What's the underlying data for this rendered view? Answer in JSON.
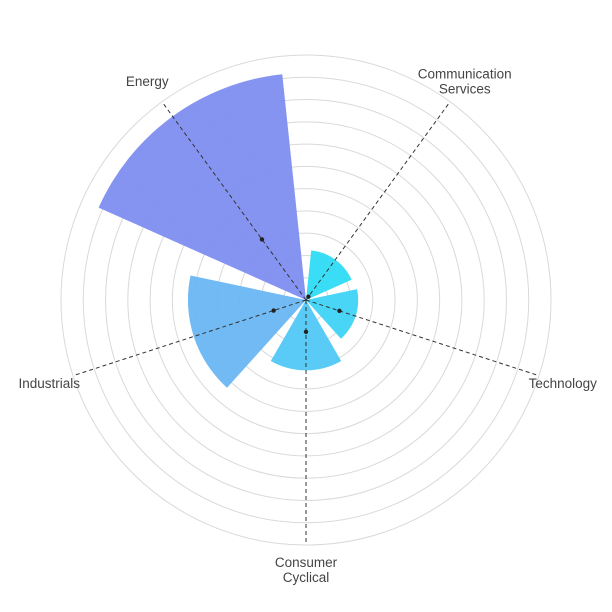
{
  "chart_data": {
    "type": "polar-bar",
    "title": "",
    "rlim": [
      0,
      1
    ],
    "ring_count": 11,
    "grid": true,
    "categories": [
      "Communication Services",
      "Technology",
      "Consumer Cyclical",
      "Industrials",
      "Energy"
    ],
    "label_lines": [
      [
        "Communication",
        "Services"
      ],
      [
        "Technology"
      ],
      [
        "Consumer",
        "Cyclical"
      ],
      [
        "Industrials"
      ],
      [
        "Energy"
      ]
    ],
    "values": [
      0.22,
      0.23,
      0.31,
      0.52,
      1.0
    ],
    "mean_markers": [
      0.018,
      0.155,
      0.14,
      0.15,
      0.33
    ],
    "colors": [
      "#2edcf5",
      "#3fd3f5",
      "#50c8f5",
      "#69b6f3",
      "#7f8ef0"
    ]
  }
}
